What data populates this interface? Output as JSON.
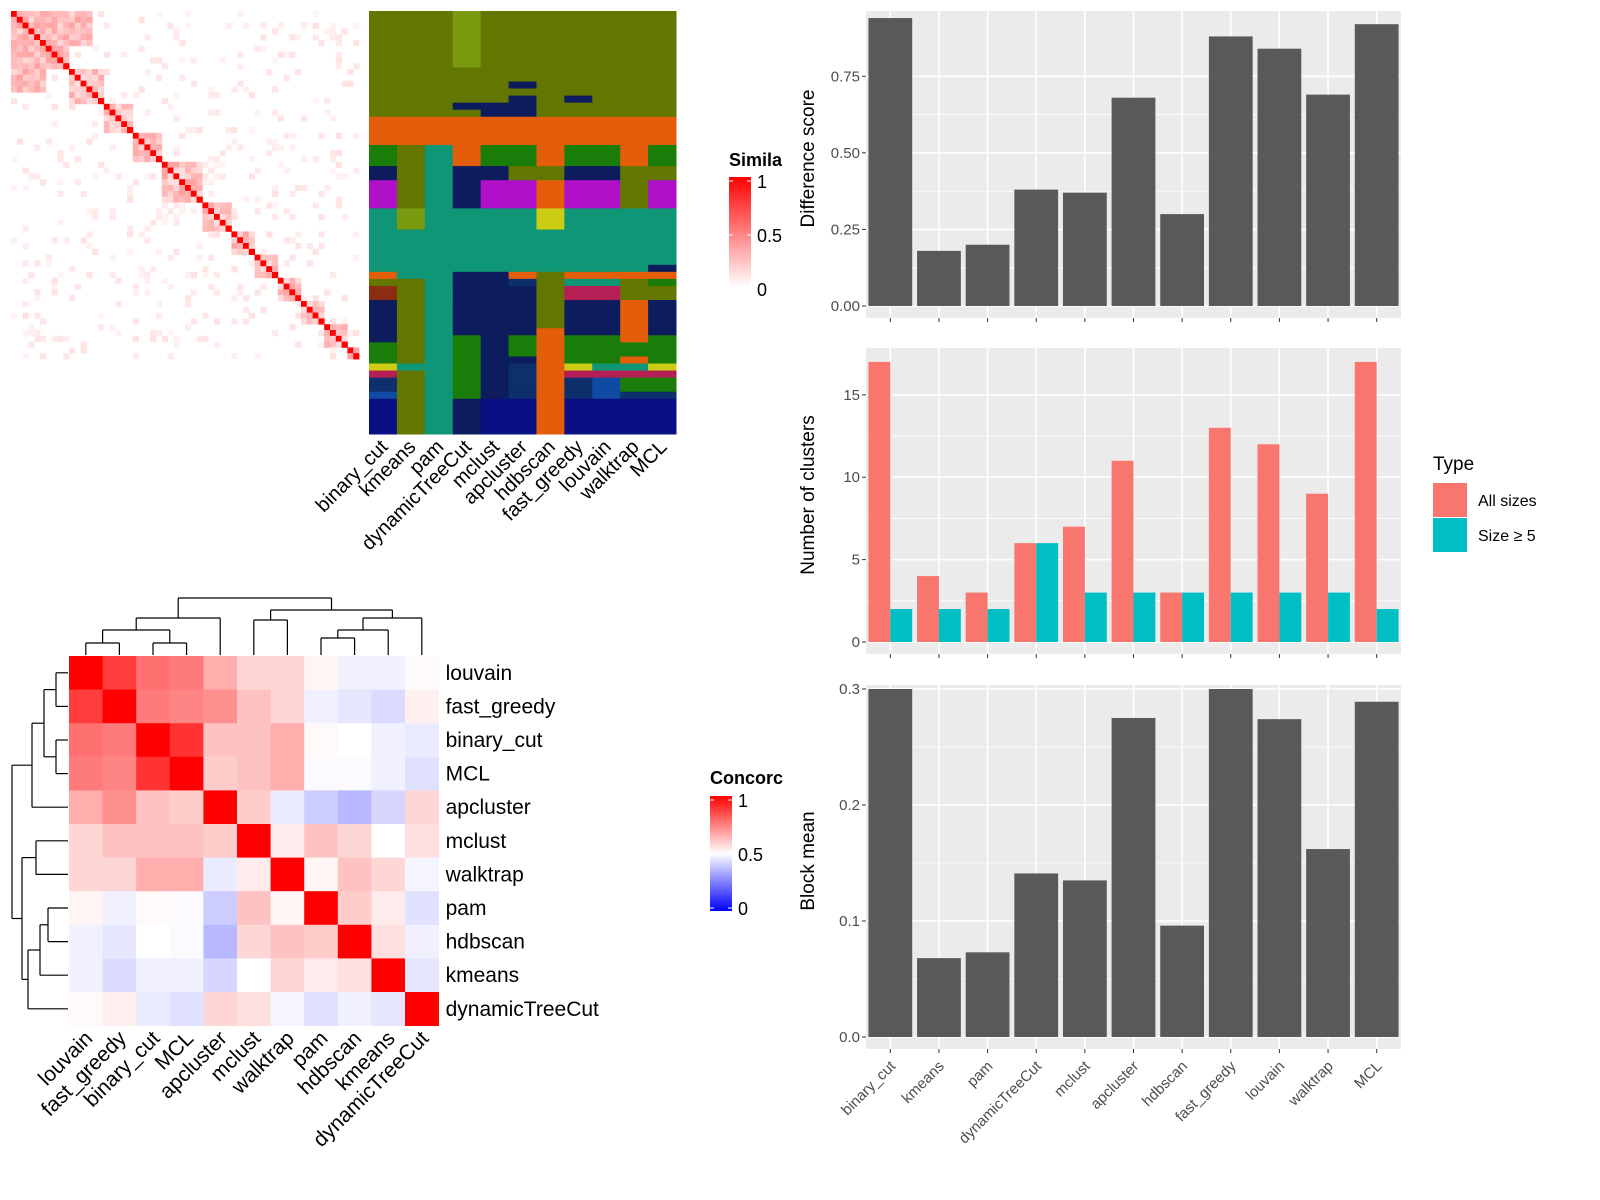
{
  "chart_data": [
    {
      "type": "heatmap",
      "panel": "similarity",
      "legend": {
        "title": "Simila",
        "ticks": [
          "1",
          "0.5",
          "0"
        ],
        "colors": [
          "#ffffff",
          "#ff0000"
        ]
      }
    },
    {
      "type": "heatmap",
      "panel": "cluster-memberships",
      "methods": [
        "binary_cut",
        "kmeans",
        "pam",
        "dynamicTreeCut",
        "mclust",
        "apcluster",
        "hdbscan",
        "fast_greedy",
        "louvain",
        "walktrap",
        "MCL"
      ]
    },
    {
      "type": "heatmap",
      "panel": "concordance",
      "row_labels": [
        "louvain",
        "fast_greedy",
        "binary_cut",
        "MCL",
        "apcluster",
        "mclust",
        "walktrap",
        "pam",
        "hdbscan",
        "kmeans",
        "dynamicTreeCut"
      ],
      "col_labels": [
        "louvain",
        "fast_greedy",
        "binary_cut",
        "MCL",
        "apcluster",
        "mclust",
        "walktrap",
        "pam",
        "hdbscan",
        "kmeans",
        "dynamicTreeCut"
      ],
      "values": [
        [
          1.0,
          0.88,
          0.78,
          0.76,
          0.66,
          0.58,
          0.58,
          0.52,
          0.47,
          0.47,
          0.51
        ],
        [
          0.88,
          1.0,
          0.76,
          0.74,
          0.72,
          0.62,
          0.58,
          0.47,
          0.45,
          0.43,
          0.53
        ],
        [
          0.78,
          0.76,
          1.0,
          0.9,
          0.62,
          0.62,
          0.66,
          0.51,
          0.5,
          0.47,
          0.46
        ],
        [
          0.76,
          0.74,
          0.9,
          1.0,
          0.6,
          0.62,
          0.66,
          0.49,
          0.49,
          0.47,
          0.44
        ],
        [
          0.66,
          0.72,
          0.62,
          0.6,
          1.0,
          0.6,
          0.46,
          0.4,
          0.36,
          0.42,
          0.58
        ],
        [
          0.58,
          0.62,
          0.62,
          0.62,
          0.6,
          1.0,
          0.54,
          0.62,
          0.58,
          0.5,
          0.56
        ],
        [
          0.58,
          0.58,
          0.66,
          0.66,
          0.46,
          0.54,
          1.0,
          0.52,
          0.62,
          0.58,
          0.48
        ],
        [
          0.52,
          0.47,
          0.51,
          0.49,
          0.4,
          0.62,
          0.52,
          1.0,
          0.6,
          0.54,
          0.44
        ],
        [
          0.47,
          0.45,
          0.5,
          0.49,
          0.36,
          0.58,
          0.62,
          0.6,
          1.0,
          0.56,
          0.47
        ],
        [
          0.47,
          0.43,
          0.47,
          0.47,
          0.42,
          0.5,
          0.58,
          0.54,
          0.56,
          1.0,
          0.45
        ],
        [
          0.51,
          0.53,
          0.46,
          0.44,
          0.58,
          0.56,
          0.48,
          0.44,
          0.47,
          0.45,
          1.0
        ]
      ],
      "legend": {
        "title": "Concorc",
        "ticks": [
          "1",
          "0.5",
          "0"
        ],
        "colors": [
          "#0000ff",
          "#ffffff",
          "#ff0000"
        ]
      }
    },
    {
      "type": "bar",
      "panel": "difference-score",
      "categories": [
        "binary_cut",
        "kmeans",
        "pam",
        "dynamicTreeCut",
        "mclust",
        "apcluster",
        "hdbscan",
        "fast_greedy",
        "louvain",
        "walktrap",
        "MCL"
      ],
      "values": [
        0.94,
        0.18,
        0.2,
        0.38,
        0.37,
        0.68,
        0.3,
        0.88,
        0.84,
        0.69,
        0.92
      ],
      "ylabel": "Difference score",
      "ylim": [
        0,
        0.95
      ],
      "yticks": [
        "0.00",
        "0.25",
        "0.50",
        "0.75"
      ],
      "color": "#595959"
    },
    {
      "type": "bar",
      "panel": "number-of-clusters",
      "categories": [
        "binary_cut",
        "kmeans",
        "pam",
        "dynamicTreeCut",
        "mclust",
        "apcluster",
        "hdbscan",
        "fast_greedy",
        "louvain",
        "walktrap",
        "MCL"
      ],
      "series": [
        {
          "name": "All sizes",
          "color": "#f8766d",
          "values": [
            17,
            4,
            3,
            6,
            7,
            11,
            3,
            13,
            12,
            9,
            17
          ]
        },
        {
          "name": "Size ≥ 5",
          "color": "#00bfc4",
          "values": [
            2,
            2,
            2,
            6,
            3,
            3,
            3,
            3,
            3,
            3,
            2
          ]
        }
      ],
      "ylabel": "Number of clusters",
      "ylim": [
        0,
        17.6
      ],
      "yticks": [
        "0",
        "5",
        "10",
        "15"
      ],
      "legend": {
        "title": "Type",
        "position": "right"
      }
    },
    {
      "type": "bar",
      "panel": "block-mean",
      "categories": [
        "binary_cut",
        "kmeans",
        "pam",
        "dynamicTreeCut",
        "mclust",
        "apcluster",
        "hdbscan",
        "fast_greedy",
        "louvain",
        "walktrap",
        "MCL"
      ],
      "values": [
        0.3,
        0.068,
        0.073,
        0.141,
        0.135,
        0.275,
        0.096,
        0.3,
        0.274,
        0.162,
        0.289
      ],
      "ylabel": "Block mean",
      "ylim": [
        0,
        0.3
      ],
      "yticks": [
        "0.0",
        "0.1",
        "0.2",
        "0.3"
      ],
      "color": "#595959"
    }
  ]
}
